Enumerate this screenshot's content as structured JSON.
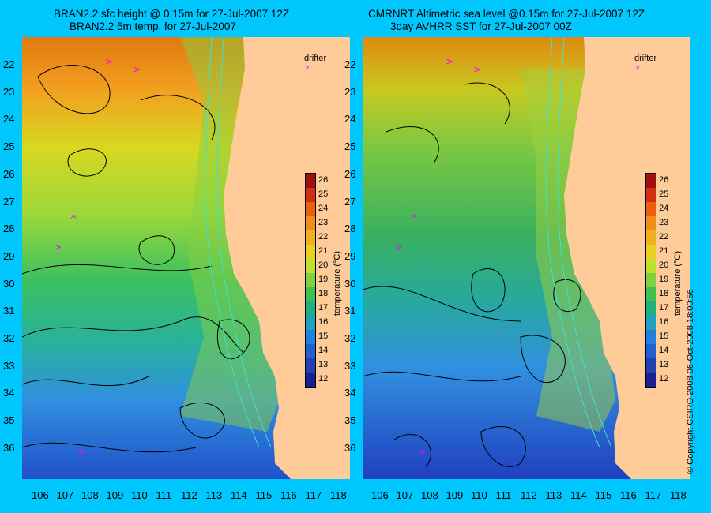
{
  "left_panel": {
    "title_line1": "BRAN2.2 sfc height @ 0.15m for 27-Jul-2007 12Z",
    "title_line2": "BRAN2.2 5m temp. for 27-Jul-2007"
  },
  "right_panel": {
    "title_line1": "CMRNRT Altimetric sea level  @0.15m  for 27-Jul-2007 12Z",
    "title_line2": "3day AVHRR SST for 27-Jul-2007 00Z"
  },
  "legend": {
    "drifter_label": "drifter",
    "colorbar_title": "temperature (°C)",
    "colorbar_ticks": [
      "26",
      "25",
      "24",
      "23",
      "22",
      "21",
      "20",
      "19",
      "18",
      "17",
      "16",
      "15",
      "14",
      "13",
      "12"
    ]
  },
  "axes": {
    "lat_ticks": [
      "22",
      "23",
      "24",
      "25",
      "26",
      "27",
      "28",
      "29",
      "30",
      "31",
      "32",
      "33",
      "34",
      "35",
      "36"
    ],
    "lon_ticks": [
      "106",
      "107",
      "108",
      "109",
      "110",
      "111",
      "112",
      "113",
      "114",
      "115",
      "116",
      "117",
      "118"
    ]
  },
  "copyright": "© Copyright CSIRO 2008    06-Oct-2008 18:00:56",
  "colors": {
    "background": "#00c8ff",
    "land": "#ffcc99",
    "contour": "#000000",
    "isobath": "#40e0d0",
    "drifter_arrow": "#ff00ff"
  },
  "icons": {
    "drifter_marker": "drifter-arrow-icon"
  }
}
